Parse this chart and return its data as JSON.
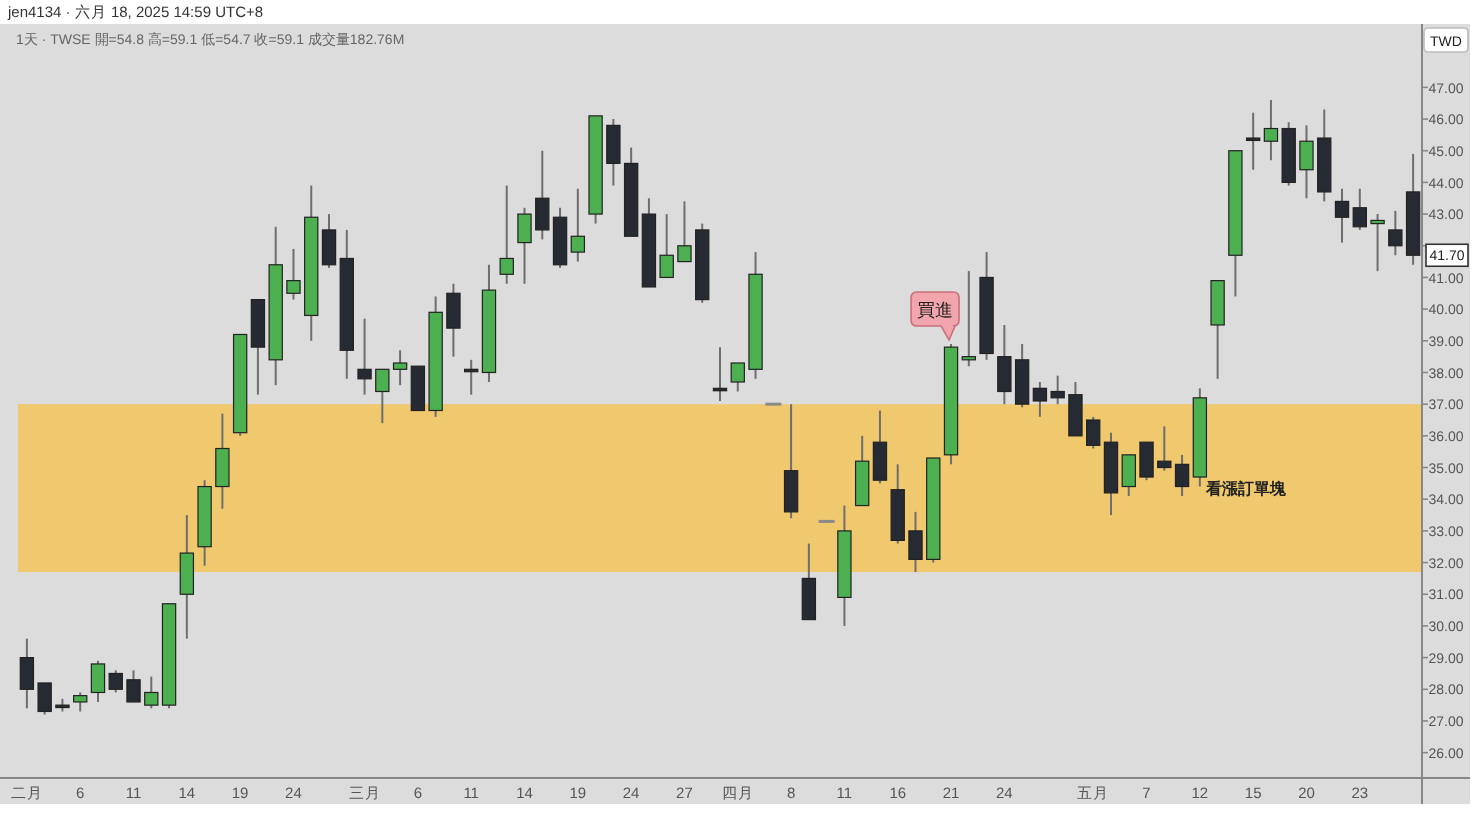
{
  "chart_data": {
    "type": "candlestick",
    "title": "jen4134 · 六月 18, 2025 14:59 UTC+8",
    "subtitle": "1天 · TWSE 開=54.8 高=59.1 低=54.7 收=59.1 成交量182.76M",
    "ylabel": "TWD",
    "categories": [
      "二月",
      null,
      null,
      "6",
      null,
      null,
      "11",
      null,
      null,
      "14",
      null,
      null,
      "19",
      null,
      null,
      "24",
      null,
      null,
      null,
      "三月",
      null,
      null,
      "6",
      null,
      null,
      "11",
      null,
      null,
      "14",
      null,
      null,
      "19",
      null,
      null,
      "24",
      null,
      null,
      "27",
      null,
      null,
      "四月",
      null,
      null,
      "8",
      null,
      null,
      "11",
      null,
      null,
      "16",
      null,
      null,
      "21",
      null,
      null,
      "24",
      null,
      null,
      null,
      null,
      "五月",
      null,
      null,
      "7",
      null,
      null,
      "12",
      null,
      null,
      "15",
      null,
      null,
      "20",
      null,
      null,
      "23",
      null,
      null,
      null
    ],
    "ohlc": [
      [
        29.0,
        29.6,
        27.4,
        28.0
      ],
      [
        28.2,
        28.2,
        27.2,
        27.3
      ],
      [
        27.5,
        27.7,
        27.3,
        27.5
      ],
      [
        27.6,
        27.9,
        27.3,
        27.8
      ],
      [
        27.9,
        28.9,
        27.6,
        28.8
      ],
      [
        28.5,
        28.6,
        27.9,
        28.0
      ],
      [
        28.3,
        28.6,
        27.6,
        27.6
      ],
      [
        27.5,
        28.4,
        27.4,
        27.9
      ],
      [
        27.5,
        30.7,
        27.4,
        30.7
      ],
      [
        31.0,
        33.5,
        29.6,
        32.3
      ],
      [
        32.5,
        34.6,
        31.9,
        34.4
      ],
      [
        34.4,
        36.7,
        33.7,
        35.6
      ],
      [
        36.1,
        39.2,
        36.0,
        39.2
      ],
      [
        40.3,
        40.3,
        37.3,
        38.8
      ],
      [
        38.4,
        42.6,
        37.6,
        41.4
      ],
      [
        40.5,
        41.9,
        40.3,
        40.9
      ],
      [
        39.8,
        43.9,
        39.0,
        42.9
      ],
      [
        42.5,
        43.0,
        41.3,
        41.4
      ],
      [
        41.6,
        42.5,
        37.8,
        38.7
      ],
      [
        38.1,
        39.7,
        37.3,
        37.8
      ],
      [
        37.4,
        38.1,
        36.4,
        38.1
      ],
      [
        38.1,
        38.7,
        37.6,
        38.3
      ],
      [
        38.2,
        38.2,
        36.8,
        36.8
      ],
      [
        36.8,
        40.4,
        36.6,
        39.9
      ],
      [
        40.5,
        40.8,
        38.5,
        39.4
      ],
      [
        38.1,
        38.4,
        37.3,
        38.1
      ],
      [
        38.0,
        41.4,
        37.7,
        40.6
      ],
      [
        41.1,
        43.9,
        40.8,
        41.6
      ],
      [
        42.1,
        43.2,
        40.8,
        43.0
      ],
      [
        43.5,
        45.0,
        42.2,
        42.5
      ],
      [
        42.9,
        43.2,
        41.3,
        41.4
      ],
      [
        41.8,
        43.8,
        41.5,
        42.3
      ],
      [
        43.0,
        46.1,
        42.7,
        46.1
      ],
      [
        45.8,
        46.0,
        43.9,
        44.6
      ],
      [
        44.6,
        45.1,
        42.3,
        42.3
      ],
      [
        43.0,
        43.5,
        40.7,
        40.7
      ],
      [
        41.0,
        43.0,
        41.0,
        41.7
      ],
      [
        41.5,
        43.4,
        41.5,
        42.0
      ],
      [
        42.5,
        42.7,
        40.2,
        40.3
      ],
      [
        37.5,
        38.8,
        37.1,
        37.5
      ],
      [
        37.7,
        38.3,
        37.4,
        38.3
      ],
      [
        38.1,
        41.8,
        37.8,
        41.1
      ],
      [
        37.0,
        37.0,
        37.0,
        37.0
      ],
      [
        34.9,
        37.0,
        33.4,
        33.6
      ],
      [
        31.5,
        32.6,
        30.2,
        30.2
      ],
      [
        33.3,
        33.3,
        33.3,
        33.3
      ],
      [
        30.9,
        33.8,
        30.0,
        33.0
      ],
      [
        33.8,
        36.0,
        33.8,
        35.2
      ],
      [
        35.8,
        36.8,
        34.5,
        34.6
      ],
      [
        34.3,
        35.1,
        32.6,
        32.7
      ],
      [
        33.0,
        33.6,
        31.7,
        32.1
      ],
      [
        32.1,
        35.3,
        32.0,
        35.3
      ],
      [
        35.4,
        38.9,
        35.1,
        38.8
      ],
      [
        38.4,
        41.2,
        38.2,
        38.5
      ],
      [
        41.0,
        41.8,
        38.4,
        38.6
      ],
      [
        38.5,
        39.5,
        37.0,
        37.4
      ],
      [
        38.4,
        38.9,
        36.9,
        37.0
      ],
      [
        37.5,
        37.7,
        36.6,
        37.1
      ],
      [
        37.4,
        37.9,
        37.0,
        37.2
      ],
      [
        37.3,
        37.7,
        36.0,
        36.0
      ],
      [
        36.5,
        36.6,
        35.6,
        35.7
      ],
      [
        35.8,
        36.1,
        33.5,
        34.2
      ],
      [
        34.4,
        35.4,
        34.1,
        35.4
      ],
      [
        35.8,
        35.8,
        34.6,
        34.7
      ],
      [
        35.2,
        36.3,
        34.9,
        35.0
      ],
      [
        35.1,
        35.4,
        34.1,
        34.4
      ],
      [
        34.7,
        37.5,
        34.4,
        37.2
      ],
      [
        39.5,
        40.9,
        37.8,
        40.9
      ],
      [
        41.7,
        45.0,
        40.4,
        45.0
      ],
      [
        45.4,
        46.2,
        44.4,
        45.4
      ],
      [
        45.3,
        46.6,
        44.7,
        45.7
      ],
      [
        45.7,
        45.9,
        43.9,
        44.0
      ],
      [
        44.4,
        45.8,
        43.5,
        45.3
      ],
      [
        45.4,
        46.3,
        43.4,
        43.7
      ],
      [
        43.4,
        43.8,
        42.1,
        42.9
      ],
      [
        43.2,
        43.8,
        42.5,
        42.6
      ],
      [
        42.7,
        43.0,
        41.2,
        42.8
      ],
      [
        42.5,
        43.1,
        41.7,
        42.0
      ],
      [
        43.7,
        44.9,
        41.4,
        41.7
      ]
    ],
    "colors": [
      "#262a33",
      "#262a33",
      "#262a33",
      "#4caf50",
      "#4caf50",
      "#262a33",
      "#262a33",
      "#4caf50",
      "#4caf50",
      "#4caf50",
      "#4caf50",
      "#4caf50",
      "#4caf50",
      "#262a33",
      "#4caf50",
      "#4caf50",
      "#4caf50",
      "#262a33",
      "#262a33",
      "#262a33",
      "#4caf50",
      "#4caf50",
      "#262a33",
      "#4caf50",
      "#262a33",
      "#262a33",
      "#4caf50",
      "#4caf50",
      "#4caf50",
      "#262a33",
      "#262a33",
      "#4caf50",
      "#4caf50",
      "#262a33",
      "#262a33",
      "#262a33",
      "#4caf50",
      "#4caf50",
      "#262a33",
      "#262a33",
      "#4caf50",
      "#4caf50",
      "#8a8a8a",
      "#262a33",
      "#262a33",
      "#8a8a8a",
      "#4caf50",
      "#4caf50",
      "#262a33",
      "#262a33",
      "#262a33",
      "#4caf50",
      "#4caf50",
      "#4caf50",
      "#262a33",
      "#262a33",
      "#262a33",
      "#262a33",
      "#262a33",
      "#262a33",
      "#262a33",
      "#262a33",
      "#4caf50",
      "#262a33",
      "#262a33",
      "#262a33",
      "#4caf50",
      "#4caf50",
      "#4caf50",
      "#262a33",
      "#4caf50",
      "#262a33",
      "#4caf50",
      "#262a33",
      "#262a33",
      "#262a33",
      "#4caf50",
      "#262a33",
      "#262a33"
    ],
    "ylim": [
      25.2,
      49.0
    ],
    "yticks": [
      {
        "value": 26,
        "label": "26.00"
      },
      {
        "value": 27,
        "label": "27.00"
      },
      {
        "value": 28,
        "label": "28.00"
      },
      {
        "value": 29,
        "label": "29.00"
      },
      {
        "value": 30,
        "label": "30.00"
      },
      {
        "value": 31,
        "label": "31.00"
      },
      {
        "value": 32,
        "label": "32.00"
      },
      {
        "value": 33,
        "label": "33.00"
      },
      {
        "value": 34,
        "label": "34.00"
      },
      {
        "value": 35,
        "label": "35.00"
      },
      {
        "value": 36,
        "label": "36.00"
      },
      {
        "value": 37,
        "label": "37.00"
      },
      {
        "value": 38,
        "label": "38.00"
      },
      {
        "value": 39,
        "label": "39.00"
      },
      {
        "value": 40,
        "label": "40.00"
      },
      {
        "value": 41,
        "label": "41.00"
      },
      {
        "value": 42,
        "label": null
      },
      {
        "value": 43,
        "label": "43.00"
      },
      {
        "value": 44,
        "label": "44.00"
      },
      {
        "value": 45,
        "label": "45.00"
      },
      {
        "value": 46,
        "label": "46.00"
      },
      {
        "value": 47,
        "label": "47.00"
      }
    ],
    "bands": [
      {
        "axis": "y",
        "from": 31.7,
        "to": 37.0,
        "label": "看漲訂單塊",
        "color": "#f0c96e"
      }
    ],
    "annotations": [
      {
        "text": "買進",
        "x": "21",
        "y": 38.9
      },
      {
        "text": "41.70",
        "y": 41.7
      }
    ]
  }
}
